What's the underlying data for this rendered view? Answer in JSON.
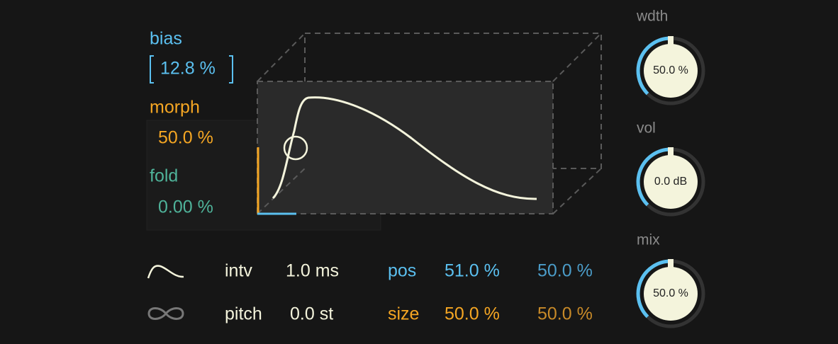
{
  "params": [
    {
      "label": "bias",
      "value": "12.8 %"
    },
    {
      "label": "morph",
      "value": "50.0 %"
    },
    {
      "label": "fold",
      "value": "0.00 %"
    }
  ],
  "bottom_rows": [
    {
      "label": "intv",
      "value": "1.0 ms",
      "label2": "pos",
      "value_a": "51.0 %",
      "value_b": "50.0 %"
    },
    {
      "label": "pitch",
      "value": "0.0 st",
      "label2": "size",
      "value_a": "50.0 %",
      "value_b": "50.0 %"
    }
  ],
  "knobs": [
    {
      "label": "wdth",
      "value": "50.0 %"
    },
    {
      "label": "vol",
      "value": "0.0 dB"
    },
    {
      "label": "mix",
      "value": "50.0 %"
    }
  ]
}
